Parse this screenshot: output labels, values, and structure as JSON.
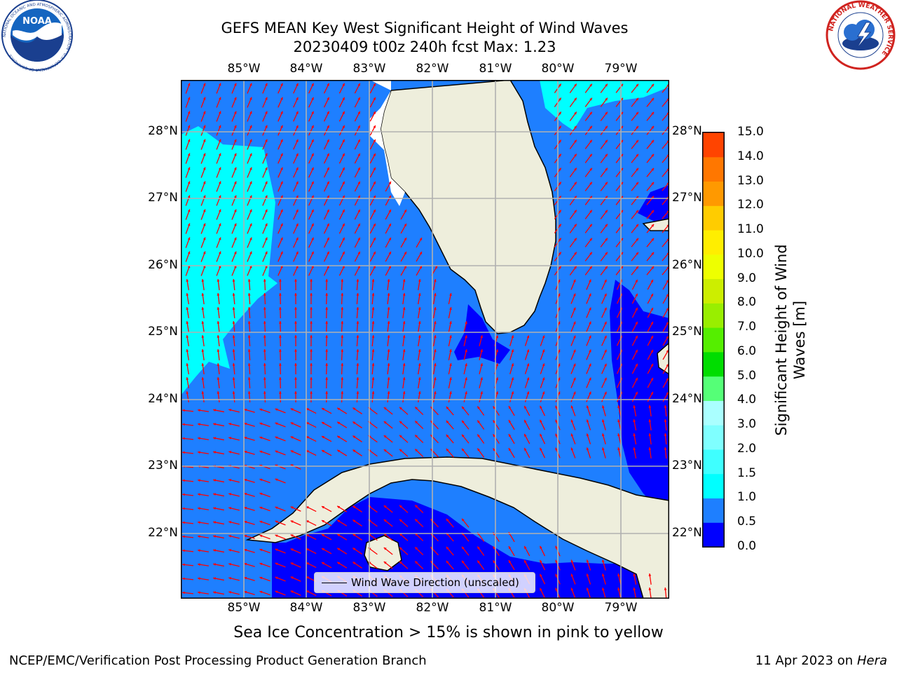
{
  "title_line1": "GEFS MEAN Key West Significant Height of Wind Waves",
  "title_line2": "20230409 t00z 240h fcst   Max: 1.23",
  "lon_labels": [
    "85°W",
    "84°W",
    "83°W",
    "82°W",
    "81°W",
    "80°W",
    "79°W"
  ],
  "lat_labels": [
    "28°N",
    "27°N",
    "26°N",
    "25°N",
    "24°N",
    "23°N",
    "22°N"
  ],
  "legend_label": "Wind Wave Direction (unscaled)",
  "colorbar": {
    "title": "Significant Height of Wind Waves [m]",
    "tick_labels": [
      "0.0",
      "0.5",
      "1.0",
      "1.5",
      "2.0",
      "3.0",
      "4.0",
      "5.0",
      "6.0",
      "7.0",
      "8.0",
      "9.0",
      "10.0",
      "11.0",
      "12.0",
      "13.0",
      "14.0",
      "15.0"
    ],
    "colors": [
      "#0000ff",
      "#1e7fff",
      "#00ffff",
      "#3fffff",
      "#7fffff",
      "#aaffff",
      "#55ff77",
      "#00dd00",
      "#55ee00",
      "#99ee00",
      "#ccee00",
      "#eeff00",
      "#ffee00",
      "#ffcc00",
      "#ff9900",
      "#ff7700",
      "#ff4400",
      "#ff0000"
    ]
  },
  "note": "Sea Ice Concentration > 15% is shown in pink to yellow",
  "footer_left": "NCEP/EMC/Verification Post Processing Product Generation Branch",
  "footer_right_date": "11 Apr 2023 on ",
  "footer_right_host": "Hera",
  "logos": {
    "noaa": {
      "text": "NOAA",
      "ring_text": "NATIONAL OCEANIC AND ATMOSPHERIC ADMINISTRATION · U.S. DEPARTMENT OF COMMERCE"
    },
    "nws": {
      "ring_text": "NATIONAL WEATHER SERVICE"
    }
  },
  "map_colors": {
    "ocean_low": "#0000ff",
    "ocean_mid": "#1e7fff",
    "ocean_high": "#00ffff",
    "land": "#eeeedc",
    "arrow": "#ff0000",
    "grid": "#b0b0b0"
  }
}
